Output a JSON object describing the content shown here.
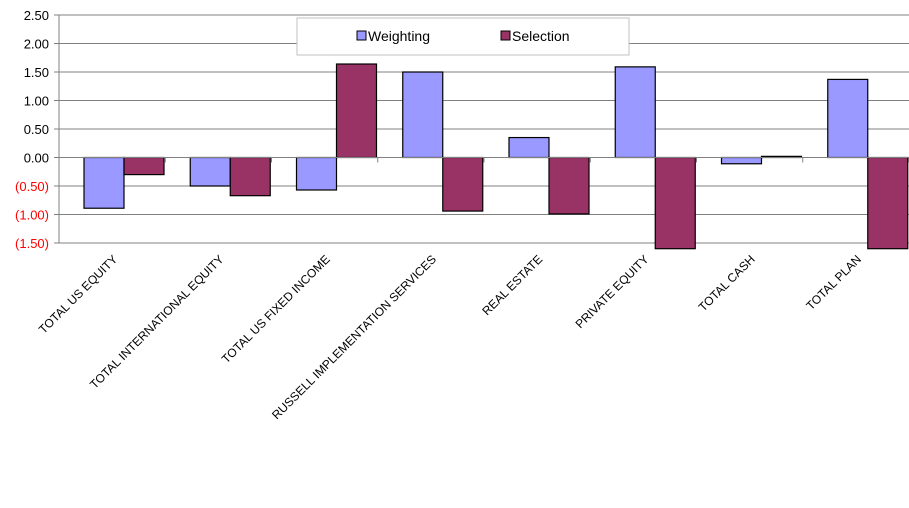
{
  "chart_data": {
    "type": "bar",
    "categories": [
      "TOTAL US EQUITY",
      "TOTAL INTERNATIONAL EQUITY",
      "TOTAL US FIXED INCOME",
      "RUSSELL IMPLEMENTATION SERVICES",
      "REAL ESTATE",
      "PRIVATE EQUITY",
      "TOTAL CASH",
      "TOTAL PLAN"
    ],
    "series": [
      {
        "name": "Weighting",
        "color": "#9999ff",
        "values": [
          -0.89,
          -0.5,
          -0.57,
          1.5,
          0.35,
          1.59,
          -0.11,
          1.37
        ]
      },
      {
        "name": "Selection",
        "color": "#993366",
        "values": [
          -0.3,
          -0.67,
          1.64,
          -0.94,
          -0.99,
          -1.6,
          0.02,
          -1.6
        ]
      }
    ],
    "ylim": [
      -1.5,
      2.5
    ],
    "ytick_step": 0.5,
    "ytick_labels": [
      "2.50",
      "2.00",
      "1.50",
      "1.00",
      "0.50",
      "0.00",
      "(0.50)",
      "(1.00)",
      "(1.50)"
    ],
    "negative_tick_color": "#ff0000",
    "grid": true,
    "legend_position": "top-center",
    "title": "",
    "xlabel": "",
    "ylabel": ""
  }
}
